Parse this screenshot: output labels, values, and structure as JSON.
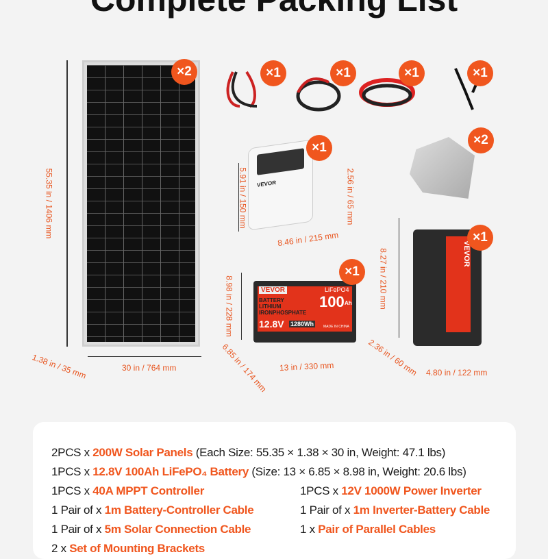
{
  "title": "Complete Packing List",
  "accent": "#f0561e",
  "badges": {
    "panel": "×2",
    "cable1": "×1",
    "cable2": "×1",
    "cable3": "×1",
    "cable4": "×1",
    "controller": "×1",
    "brackets": "×2",
    "battery": "×1",
    "inverter": "×1"
  },
  "dimensions": {
    "panel_h": "55.35 in / 1406 mm",
    "panel_w": "30 in / 764 mm",
    "panel_d": "1.38 in / 35 mm",
    "ctrl_h": "5.91 in / 150 mm",
    "ctrl_w": "8.46 in / 215 mm",
    "ctrl_d": "2.56 in / 65 mm",
    "bat_h": "8.98 in / 228 mm",
    "bat_d": "6.85 in / 174 mm",
    "bat_w": "13 in / 330 mm",
    "inv_h": "8.27 in / 210 mm",
    "inv_d": "2.36 in / 60 mm",
    "inv_w": "4.80 in / 122 mm"
  },
  "battery_label": {
    "brand": "VEVOR",
    "chem": "LiFePO4",
    "l1": "BATTERY",
    "l2": "LITHIUM",
    "l3": "IRONPHOSPHATE",
    "cap": "100",
    "unit": "Ah",
    "volt": "12.8V",
    "wh": "1280Wh",
    "origin": "MADE IN CHINA"
  },
  "controller_brand": "VEVOR",
  "inverter_brand": "VEVOR",
  "list": [
    {
      "pre": "2PCS x ",
      "hl": "200W Solar Panels",
      "post": " (Each Size: 55.35 × 1.38 × 30 in, Weight: 47.1 lbs)"
    },
    {
      "pre": "1PCS x ",
      "hl": "12.8V 100Ah LiFePO₄ Battery",
      "post": " (Size: 13 × 6.85 × 8.98 in, Weight: 20.6 lbs)"
    },
    {
      "pre": "1PCS x ",
      "hl": "40A MPPT Controller",
      "post": ""
    },
    {
      "pre": "1PCS x ",
      "hl": "12V 1000W Power Inverter",
      "post": ""
    },
    {
      "pre": "1 Pair of x ",
      "hl": "1m Battery-Controller Cable",
      "post": ""
    },
    {
      "pre": "1 Pair of x ",
      "hl": "1m Inverter-Battery Cable",
      "post": ""
    },
    {
      "pre": "1 Pair of x ",
      "hl": "5m Solar Connection Cable",
      "post": ""
    },
    {
      "pre": "1 x ",
      "hl": "Pair of  Parallel Cables",
      "post": ""
    },
    {
      "pre": "2 x ",
      "hl": "Set of Mounting Brackets",
      "post": ""
    }
  ]
}
